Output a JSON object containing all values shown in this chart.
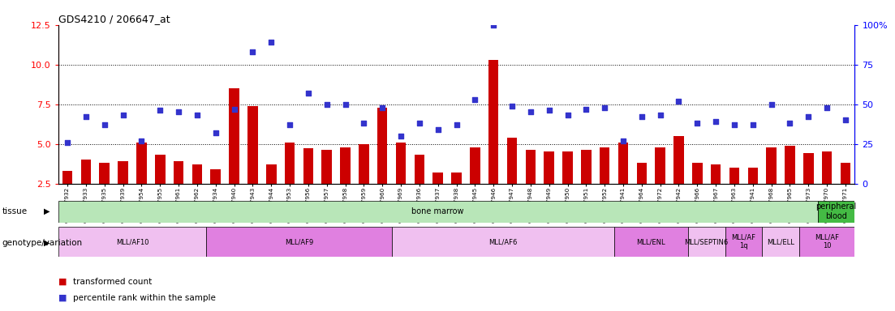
{
  "title": "GDS4210 / 206647_at",
  "samples": [
    "GSM487932",
    "GSM487933",
    "GSM487935",
    "GSM487939",
    "GSM487954",
    "GSM487955",
    "GSM487961",
    "GSM487962",
    "GSM487934",
    "GSM487940",
    "GSM487943",
    "GSM487944",
    "GSM487953",
    "GSM487956",
    "GSM487957",
    "GSM487958",
    "GSM487959",
    "GSM487960",
    "GSM487969",
    "GSM487936",
    "GSM487937",
    "GSM487938",
    "GSM487945",
    "GSM487946",
    "GSM487947",
    "GSM487948",
    "GSM487949",
    "GSM487950",
    "GSM487951",
    "GSM487952",
    "GSM487941",
    "GSM487964",
    "GSM487972",
    "GSM487942",
    "GSM487966",
    "GSM487967",
    "GSM487963",
    "GSM487941",
    "GSM487968",
    "GSM487965",
    "GSM487973",
    "GSM487970",
    "GSM487971"
  ],
  "bar_values": [
    3.3,
    4.0,
    3.8,
    3.9,
    5.1,
    4.3,
    3.9,
    3.7,
    3.4,
    8.5,
    7.4,
    3.7,
    5.1,
    4.7,
    4.6,
    4.8,
    5.0,
    7.3,
    5.1,
    4.3,
    3.2,
    3.2,
    4.8,
    10.3,
    5.4,
    4.6,
    4.5,
    4.5,
    4.6,
    4.8,
    5.1,
    3.8,
    4.8,
    5.5,
    3.8,
    3.7,
    3.5,
    3.5,
    4.8,
    4.9,
    4.4,
    4.5,
    3.8
  ],
  "dot_values": [
    26,
    42,
    37,
    43,
    27,
    46,
    45,
    43,
    32,
    47,
    83,
    89,
    37,
    57,
    50,
    50,
    38,
    48,
    30,
    38,
    34,
    37,
    53,
    100,
    49,
    45,
    46,
    43,
    47,
    48,
    27,
    42,
    43,
    52,
    38,
    39,
    37,
    37,
    50,
    38,
    42,
    48,
    40
  ],
  "ylim_left": [
    2.5,
    12.5
  ],
  "yticks_left": [
    2.5,
    5.0,
    7.5,
    10.0,
    12.5
  ],
  "yticks_right_vals": [
    0,
    25,
    50,
    75,
    100
  ],
  "ytick_labels_right": [
    "0",
    "25",
    "50",
    "75",
    "100%"
  ],
  "bar_color": "#cc0000",
  "dot_color": "#3333cc",
  "tissue_groups": [
    {
      "label": "bone marrow",
      "start": 0,
      "end": 41,
      "color": "#b8e6b8"
    },
    {
      "label": "peripheral\nblood",
      "start": 41,
      "end": 43,
      "color": "#44bb44"
    }
  ],
  "genotype_groups": [
    {
      "label": "MLL/AF10",
      "start": 0,
      "end": 8,
      "color": "#f0c0f0"
    },
    {
      "label": "MLL/AF9",
      "start": 8,
      "end": 18,
      "color": "#e080e0"
    },
    {
      "label": "MLL/AF6",
      "start": 18,
      "end": 30,
      "color": "#f0c0f0"
    },
    {
      "label": "MLL/ENL",
      "start": 30,
      "end": 34,
      "color": "#e080e0"
    },
    {
      "label": "MLL/SEPTIN6",
      "start": 34,
      "end": 36,
      "color": "#f0c0f0"
    },
    {
      "label": "MLL/AF\n1q",
      "start": 36,
      "end": 38,
      "color": "#e080e0"
    },
    {
      "label": "MLL/ELL",
      "start": 38,
      "end": 40,
      "color": "#f0c0f0"
    },
    {
      "label": "MLL/AF\n10",
      "start": 40,
      "end": 43,
      "color": "#e080e0"
    }
  ]
}
